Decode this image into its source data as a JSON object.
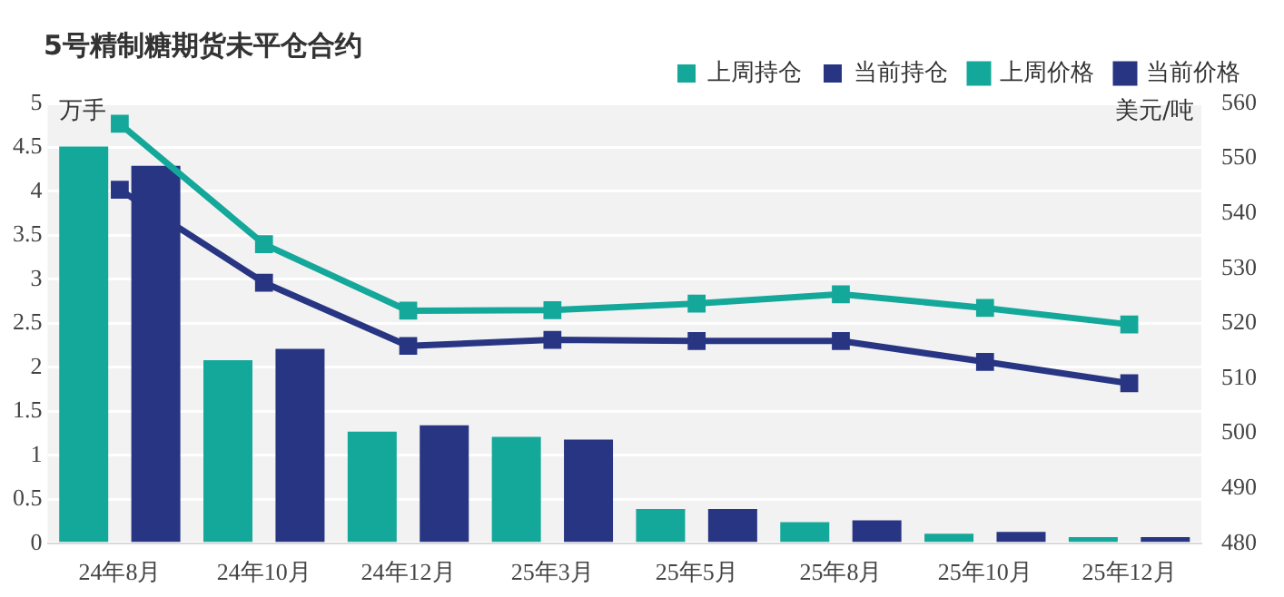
{
  "chart_data": {
    "type": "bar",
    "title": "5号精制糖期货未平仓合约",
    "ylabel": "万手",
    "y2label": "美元/吨",
    "categories": [
      "24年8月",
      "24年10月",
      "24年12月",
      "25年3月",
      "25年5月",
      "25年8月",
      "25年10月",
      "25年12月"
    ],
    "series": [
      {
        "name": "上周持仓",
        "color": "#14a89a",
        "values": [
          4.51,
          2.08,
          1.27,
          1.21,
          0.39,
          0.24,
          0.11,
          0.07
        ]
      },
      {
        "name": "当前持仓",
        "color": "#283583",
        "values": [
          4.29,
          2.21,
          1.34,
          1.18,
          0.39,
          0.26,
          0.13,
          0.07
        ]
      },
      {
        "name": "上周价格",
        "type": "line",
        "axis": "y2",
        "color": "#14a89a",
        "values": [
          556.3,
          534.4,
          522.3,
          522.4,
          523.6,
          525.3,
          522.8,
          519.8
        ]
      },
      {
        "name": "当前价格",
        "type": "line",
        "axis": "y2",
        "color": "#283583",
        "values": [
          544.3,
          527.4,
          515.9,
          517,
          516.8,
          516.8,
          513,
          509.1
        ]
      }
    ],
    "ylim": [
      0,
      5
    ],
    "yticks": [
      0,
      0.5,
      1,
      1.5,
      2,
      2.5,
      3,
      3.5,
      4,
      4.5,
      5
    ],
    "y2lim": [
      480,
      560
    ],
    "y2ticks": [
      480,
      490,
      500,
      510,
      520,
      530,
      540,
      550,
      560
    ],
    "grid": "y",
    "legend": "top right",
    "marker": "square",
    "line_style": "solid"
  }
}
